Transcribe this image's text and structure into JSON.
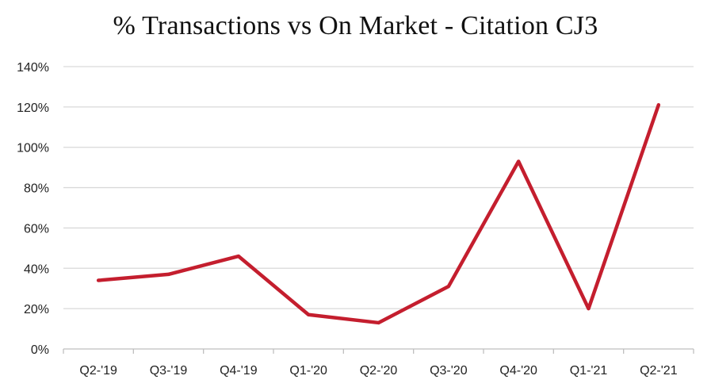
{
  "chart_data": {
    "type": "line",
    "title": "% Transactions vs On Market - Citation CJ3",
    "xlabel": "",
    "ylabel": "",
    "categories": [
      "Q2-'19",
      "Q3-'19",
      "Q4-'19",
      "Q1-'20",
      "Q2-'20",
      "Q3-'20",
      "Q4-'20",
      "Q1-'21",
      "Q2-'21"
    ],
    "series": [
      {
        "values": [
          34,
          37,
          46,
          17,
          13,
          31,
          93,
          20,
          121
        ]
      }
    ],
    "ylim": [
      0,
      140
    ],
    "yticks": [
      "0%",
      "20%",
      "40%",
      "60%",
      "80%",
      "100%",
      "120%",
      "140%"
    ],
    "ytick_values": [
      0,
      20,
      40,
      60,
      80,
      100,
      120,
      140
    ],
    "grid": true,
    "legend": "none",
    "colors": {
      "line": "#c41e2e",
      "grid": "#d9d9d9",
      "axis": "#bfbfbf"
    }
  }
}
